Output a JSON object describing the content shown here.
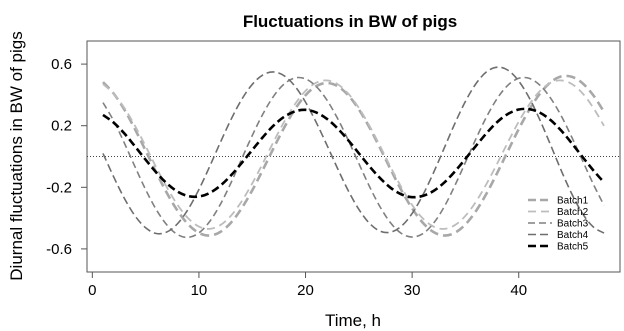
{
  "chart_data": {
    "type": "line",
    "title": "Fluctuations in BW of pigs",
    "xlabel": "Time, h",
    "ylabel": "Diurnal fluctuations in BW of pigs",
    "xlim": [
      -0.5,
      49.5
    ],
    "ylim": [
      -0.75,
      0.75
    ],
    "x_ticks": [
      0,
      10,
      20,
      30,
      40
    ],
    "y_ticks": [
      -0.6,
      -0.2,
      0.2,
      0.6
    ],
    "y_tick_labels": [
      "-0.6",
      "-0.2",
      "0.2",
      "0.6"
    ],
    "reference_line": 0,
    "grid": false,
    "legend_position": "right",
    "x": [
      1,
      2,
      3,
      4,
      5,
      6,
      7,
      8,
      9,
      10,
      11,
      12,
      13,
      14,
      15,
      16,
      17,
      18,
      19,
      20,
      21,
      22,
      23,
      24,
      25,
      26,
      27,
      28,
      29,
      30,
      31,
      32,
      33,
      34,
      35,
      36,
      37,
      38,
      39,
      40,
      41,
      42,
      43,
      44,
      45,
      46,
      47,
      48
    ],
    "series": [
      {
        "name": "Batch1",
        "color": "#a8a8a8",
        "width": 2.6,
        "dash": "9,5",
        "values": [
          0.483,
          0.409,
          0.305,
          0.178,
          0.038,
          -0.104,
          -0.238,
          -0.353,
          -0.441,
          -0.496,
          -0.513,
          -0.49,
          -0.43,
          -0.337,
          -0.22,
          -0.086,
          0.054,
          0.188,
          0.306,
          0.398,
          0.457,
          0.477,
          0.457,
          0.398,
          0.306,
          0.188,
          0.054,
          -0.086,
          -0.22,
          -0.337,
          -0.43,
          -0.49,
          -0.513,
          -0.496,
          -0.441,
          -0.353,
          -0.238,
          -0.104,
          0.038,
          0.178,
          0.305,
          0.409,
          0.483,
          0.52,
          0.517,
          0.475,
          0.397,
          0.29
        ]
      },
      {
        "name": "Batch2",
        "color": "#bdbdbd",
        "width": 1.8,
        "dash": "8,5",
        "values": [
          0.47,
          0.408,
          0.316,
          0.199,
          0.067,
          -0.071,
          -0.201,
          -0.315,
          -0.402,
          -0.455,
          -0.47,
          -0.446,
          -0.385,
          -0.292,
          -0.175,
          -0.043,
          0.095,
          0.226,
          0.339,
          0.426,
          0.479,
          0.494,
          0.47,
          0.409,
          0.316,
          0.199,
          0.067,
          -0.071,
          -0.201,
          -0.315,
          -0.402,
          -0.455,
          -0.47,
          -0.446,
          -0.385,
          -0.292,
          -0.175,
          -0.043,
          0.095,
          0.226,
          0.339,
          0.426,
          0.479,
          0.494,
          0.47,
          0.409,
          0.316,
          0.199
        ]
      },
      {
        "name": "Batch3",
        "color": "#808080",
        "width": 1.6,
        "dash": "7,4",
        "values": [
          0.35,
          0.232,
          0.088,
          -0.066,
          -0.215,
          -0.345,
          -0.445,
          -0.507,
          -0.525,
          -0.496,
          -0.423,
          -0.312,
          -0.172,
          -0.017,
          0.136,
          0.276,
          0.391,
          0.471,
          0.51,
          0.504,
          0.455,
          0.367,
          0.248,
          0.107,
          -0.045,
          -0.195,
          -0.328,
          -0.433,
          -0.5,
          -0.523,
          -0.501,
          -0.434,
          -0.328,
          -0.19,
          -0.038,
          0.117,
          0.26,
          0.379,
          0.464,
          0.508,
          0.507,
          0.462,
          0.378,
          0.262,
          0.122,
          -0.029,
          -0.18,
          -0.317
        ]
      },
      {
        "name": "Batch4",
        "color": "#6e6e6e",
        "width": 1.6,
        "dash": "8,4",
        "values": [
          0.02,
          -0.132,
          -0.271,
          -0.385,
          -0.463,
          -0.5,
          -0.49,
          -0.436,
          -0.341,
          -0.214,
          -0.066,
          0.09,
          0.239,
          0.369,
          0.468,
          0.53,
          0.549,
          0.524,
          0.457,
          0.353,
          0.222,
          0.075,
          -0.077,
          -0.221,
          -0.343,
          -0.434,
          -0.485,
          -0.491,
          -0.452,
          -0.37,
          -0.251,
          -0.106,
          0.053,
          0.213,
          0.358,
          0.474,
          0.551,
          0.58,
          0.56,
          0.49,
          0.379,
          0.235,
          0.073,
          -0.093,
          -0.246,
          -0.372,
          -0.458,
          -0.497
        ]
      },
      {
        "name": "Batch5",
        "color": "#000000",
        "width": 2.6,
        "dash": "8,4",
        "values": [
          0.27,
          0.22,
          0.15,
          0.066,
          -0.021,
          -0.104,
          -0.175,
          -0.228,
          -0.257,
          -0.26,
          -0.237,
          -0.19,
          -0.123,
          -0.043,
          0.042,
          0.126,
          0.201,
          0.258,
          0.293,
          0.303,
          0.286,
          0.245,
          0.183,
          0.106,
          0.021,
          -0.064,
          -0.141,
          -0.204,
          -0.246,
          -0.264,
          -0.256,
          -0.224,
          -0.17,
          -0.098,
          -0.015,
          0.07,
          0.153,
          0.225,
          0.277,
          0.305,
          0.307,
          0.284,
          0.236,
          0.167,
          0.084,
          -0.004,
          -0.09,
          -0.168
        ]
      }
    ]
  }
}
